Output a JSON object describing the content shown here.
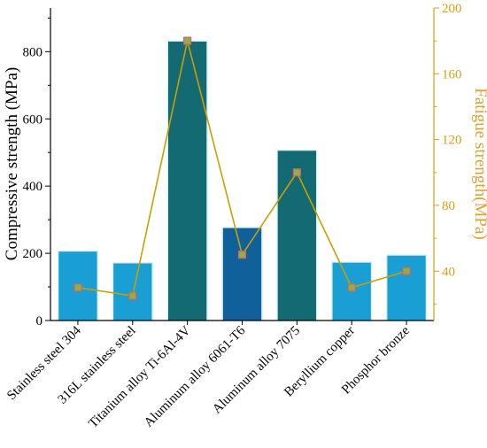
{
  "chart_data": {
    "type": "bar",
    "categories": [
      "Stainless steel 304",
      "316L stainless steel",
      "Titanium alloy Ti-6Al-4V",
      "Aluminum alloy 6061-T6",
      "Aluminum alloy 7075",
      "Beryllium copper",
      "Phosphor bronze"
    ],
    "series": [
      {
        "type": "bar",
        "axis": "left",
        "values": [
          205,
          170,
          830,
          275,
          505,
          172,
          193
        ],
        "colors": [
          "#1a9fd4",
          "#1a9fd4",
          "#136a72",
          "#10619b",
          "#136a72",
          "#1a9fd4",
          "#1a9fd4"
        ]
      },
      {
        "type": "line",
        "axis": "right",
        "values": [
          30,
          25,
          180,
          50,
          100,
          30,
          40
        ],
        "line_color": "#c8a000",
        "marker_color": "#8fb040",
        "marker_edge": "#d06070"
      }
    ],
    "ylabel": "Compressive strength (MPa)",
    "ylabel_right": "Fatigue strength(MPa)",
    "ylim": [
      0,
      930
    ],
    "ylim_right": [
      10,
      200
    ],
    "yticks": [
      0,
      200,
      400,
      600,
      800
    ],
    "yticks_right": [
      40,
      80,
      120,
      160,
      200
    ],
    "right_axis_color": "#d4a017",
    "grid": false,
    "legend": "none"
  }
}
